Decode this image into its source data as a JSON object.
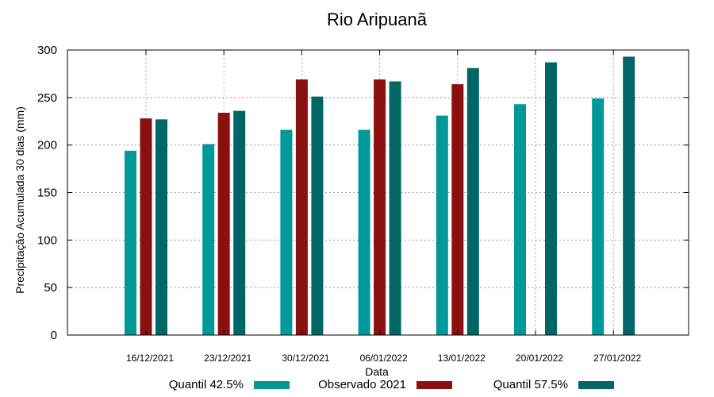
{
  "chart_data": {
    "type": "bar",
    "title": "Rio Aripuanã",
    "xlabel": "Data",
    "ylabel": "Precipitação Acumulada 30 dias (mm)",
    "ylim": [
      0,
      300
    ],
    "yticks": [
      0,
      50,
      100,
      150,
      200,
      250,
      300
    ],
    "grid": true,
    "legend_position": "bottom",
    "categories": [
      "16/12/2021",
      "23/12/2021",
      "30/12/2021",
      "06/01/2022",
      "13/01/2022",
      "20/01/2022",
      "27/01/2022"
    ],
    "series": [
      {
        "name": "Quantil 42.5%",
        "color": "#009999",
        "values": [
          194,
          201,
          216,
          216,
          231,
          243,
          249
        ]
      },
      {
        "name": "Observado 2021",
        "color": "#8b1010",
        "values": [
          228,
          234,
          269,
          269,
          264,
          null,
          null
        ]
      },
      {
        "name": "Quantil 57.5%",
        "color": "#006666",
        "values": [
          227,
          236,
          251,
          267,
          281,
          287,
          293
        ]
      }
    ]
  }
}
